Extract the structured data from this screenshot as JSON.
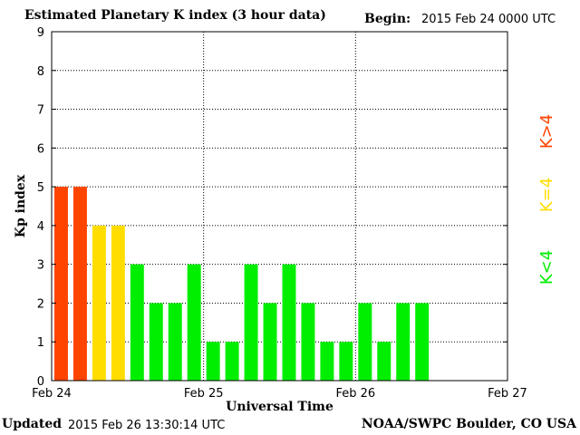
{
  "header": {
    "title": "Estimated Planetary K index (3 hour data)",
    "begin_label": "Begin:",
    "begin_value": "2015 Feb 24 0000 UTC"
  },
  "footer": {
    "updated_label": "Updated",
    "updated_value": "2015 Feb 26 13:30:14 UTC",
    "credit": "NOAA/SWPC Boulder, CO USA"
  },
  "colors": {
    "storm": "#ff4400",
    "active": "#ffdd00",
    "quiet": "#00ee00",
    "grid": "#000000",
    "frame": "#000000"
  },
  "chart_data": {
    "type": "bar",
    "xlabel": "Universal Time",
    "ylabel": "Kp index",
    "ylim": [
      0,
      9
    ],
    "yticks": [
      0,
      1,
      2,
      3,
      4,
      5,
      6,
      7,
      8,
      9
    ],
    "x_range_hours": [
      0,
      72
    ],
    "xticks": [
      {
        "hour": 0,
        "label": "Feb 24"
      },
      {
        "hour": 24,
        "label": "Feb 25"
      },
      {
        "hour": 48,
        "label": "Feb 26"
      },
      {
        "hour": 72,
        "label": "Feb 27"
      }
    ],
    "grid": true,
    "interval_hours": 3,
    "values": [
      5,
      5,
      4,
      4,
      3,
      2,
      2,
      3,
      1,
      1,
      3,
      2,
      3,
      2,
      1,
      1,
      2,
      1,
      2,
      2
    ],
    "legend": [
      {
        "label": "K<4",
        "color": "#00ee00"
      },
      {
        "label": "K=4",
        "color": "#ffdd00"
      },
      {
        "label": "K>4",
        "color": "#ff4400"
      }
    ]
  }
}
